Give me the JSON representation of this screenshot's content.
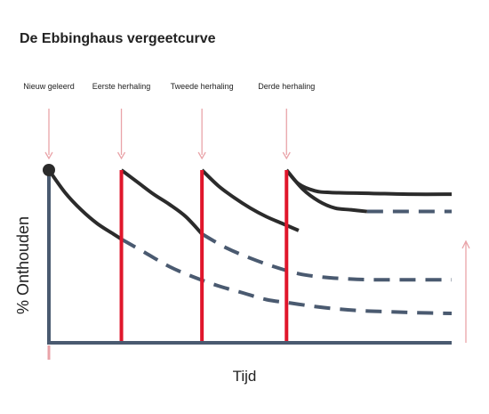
{
  "chart_data": {
    "type": "line",
    "title": "De Ebbinghaus vergeetcurve",
    "xlabel": "Tijd",
    "ylabel": "% Onthouden",
    "xlim": [
      0,
      100
    ],
    "ylim": [
      0,
      100
    ],
    "grid": false,
    "colors": {
      "remembered": "#2b2b2b",
      "forgotten": "#4a5a70",
      "repetition": "#e0162b",
      "arrow": "#e9a3a8",
      "axis": "#4a5a70"
    },
    "annotations": [
      {
        "label": "Nieuw geleerd",
        "x": 0
      },
      {
        "label": "Eerste herhaling",
        "x": 18
      },
      {
        "label": "Tweede herhaling",
        "x": 38
      },
      {
        "label": "Derde herhaling",
        "x": 59
      }
    ],
    "repetitions": [
      {
        "x": 18,
        "y": 100
      },
      {
        "x": 38,
        "y": 100
      },
      {
        "x": 59,
        "y": 100
      }
    ],
    "series": [
      {
        "style": "solid",
        "points": [
          [
            0,
            100
          ],
          [
            4,
            87
          ],
          [
            8,
            77
          ],
          [
            12,
            69
          ],
          [
            16,
            63
          ],
          [
            18,
            60
          ]
        ]
      },
      {
        "style": "dashed",
        "points": [
          [
            18,
            60
          ],
          [
            24,
            52
          ],
          [
            30,
            44
          ],
          [
            36,
            38
          ],
          [
            42,
            33
          ],
          [
            48,
            29
          ],
          [
            54,
            25
          ],
          [
            60,
            23
          ],
          [
            66,
            21
          ],
          [
            72,
            19.5
          ],
          [
            78,
            18.5
          ],
          [
            84,
            18
          ],
          [
            90,
            17.5
          ],
          [
            100,
            17
          ]
        ]
      },
      {
        "style": "solid",
        "points": [
          [
            18,
            100
          ],
          [
            22,
            93
          ],
          [
            26,
            86
          ],
          [
            30,
            80
          ],
          [
            34,
            73
          ],
          [
            38,
            63
          ]
        ]
      },
      {
        "style": "dashed",
        "points": [
          [
            38,
            63
          ],
          [
            44,
            55
          ],
          [
            50,
            49
          ],
          [
            56,
            44
          ],
          [
            62,
            40
          ],
          [
            68,
            38
          ],
          [
            74,
            37
          ],
          [
            80,
            36.5
          ],
          [
            90,
            36.5
          ],
          [
            100,
            36.5
          ]
        ]
      },
      {
        "style": "solid",
        "points": [
          [
            38,
            100
          ],
          [
            42,
            91
          ],
          [
            46,
            84
          ],
          [
            50,
            78
          ],
          [
            54,
            73
          ],
          [
            58,
            69
          ],
          [
            62,
            65
          ]
        ]
      },
      {
        "style": "solid",
        "points": [
          [
            59,
            100
          ],
          [
            63,
            89
          ],
          [
            67,
            82
          ],
          [
            71,
            78
          ],
          [
            75,
            77
          ],
          [
            79,
            76
          ]
        ]
      },
      {
        "style": "dashed",
        "points": [
          [
            79,
            76
          ],
          [
            100,
            76
          ]
        ]
      },
      {
        "style": "solid",
        "points": [
          [
            59,
            100
          ],
          [
            62,
            92
          ],
          [
            66,
            88
          ],
          [
            70,
            87
          ],
          [
            80,
            86.5
          ],
          [
            90,
            86
          ],
          [
            100,
            86
          ]
        ]
      }
    ]
  }
}
